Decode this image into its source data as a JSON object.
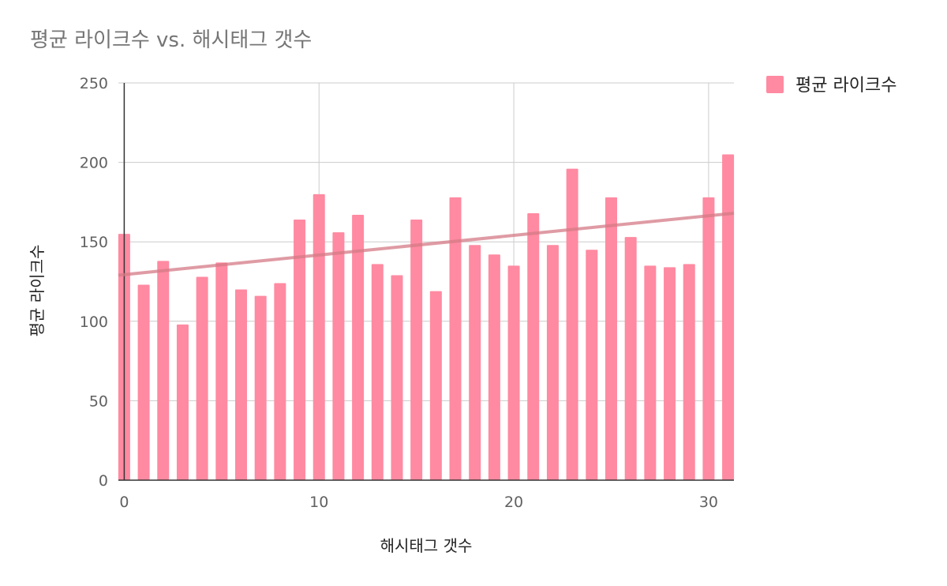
{
  "chart_data": {
    "type": "bar",
    "title": "평균 라이크수 vs. 해시태그 갯수",
    "xlabel": "해시태그 갯수",
    "ylabel": "평균 라이크수",
    "x": [
      0,
      1,
      2,
      3,
      4,
      5,
      6,
      7,
      8,
      9,
      10,
      11,
      12,
      13,
      14,
      15,
      16,
      17,
      18,
      19,
      20,
      21,
      22,
      23,
      24,
      25,
      26,
      27,
      28,
      29,
      30,
      31
    ],
    "series": [
      {
        "name": "평균 라이크수",
        "values": [
          155,
          123,
          138,
          98,
          128,
          137,
          120,
          116,
          124,
          164,
          180,
          156,
          167,
          136,
          129,
          164,
          119,
          178,
          148,
          142,
          135,
          168,
          148,
          196,
          145,
          178,
          153,
          135,
          134,
          136,
          178,
          205
        ]
      }
    ],
    "trendline": {
      "type": "linear",
      "start": [
        -0.3,
        129
      ],
      "end": [
        31.3,
        168
      ]
    },
    "xlim": [
      -0.3,
      31.3
    ],
    "ylim": [
      0,
      250
    ],
    "xticks": [
      0,
      10,
      20,
      30
    ],
    "yticks": [
      0,
      50,
      100,
      150,
      200,
      250
    ],
    "grid": true,
    "legend_position": "right-top",
    "colors": {
      "bar": "#ff8aa1",
      "trendline": "#d47a86",
      "grid": "#cccccc",
      "axis": "#333333"
    }
  }
}
